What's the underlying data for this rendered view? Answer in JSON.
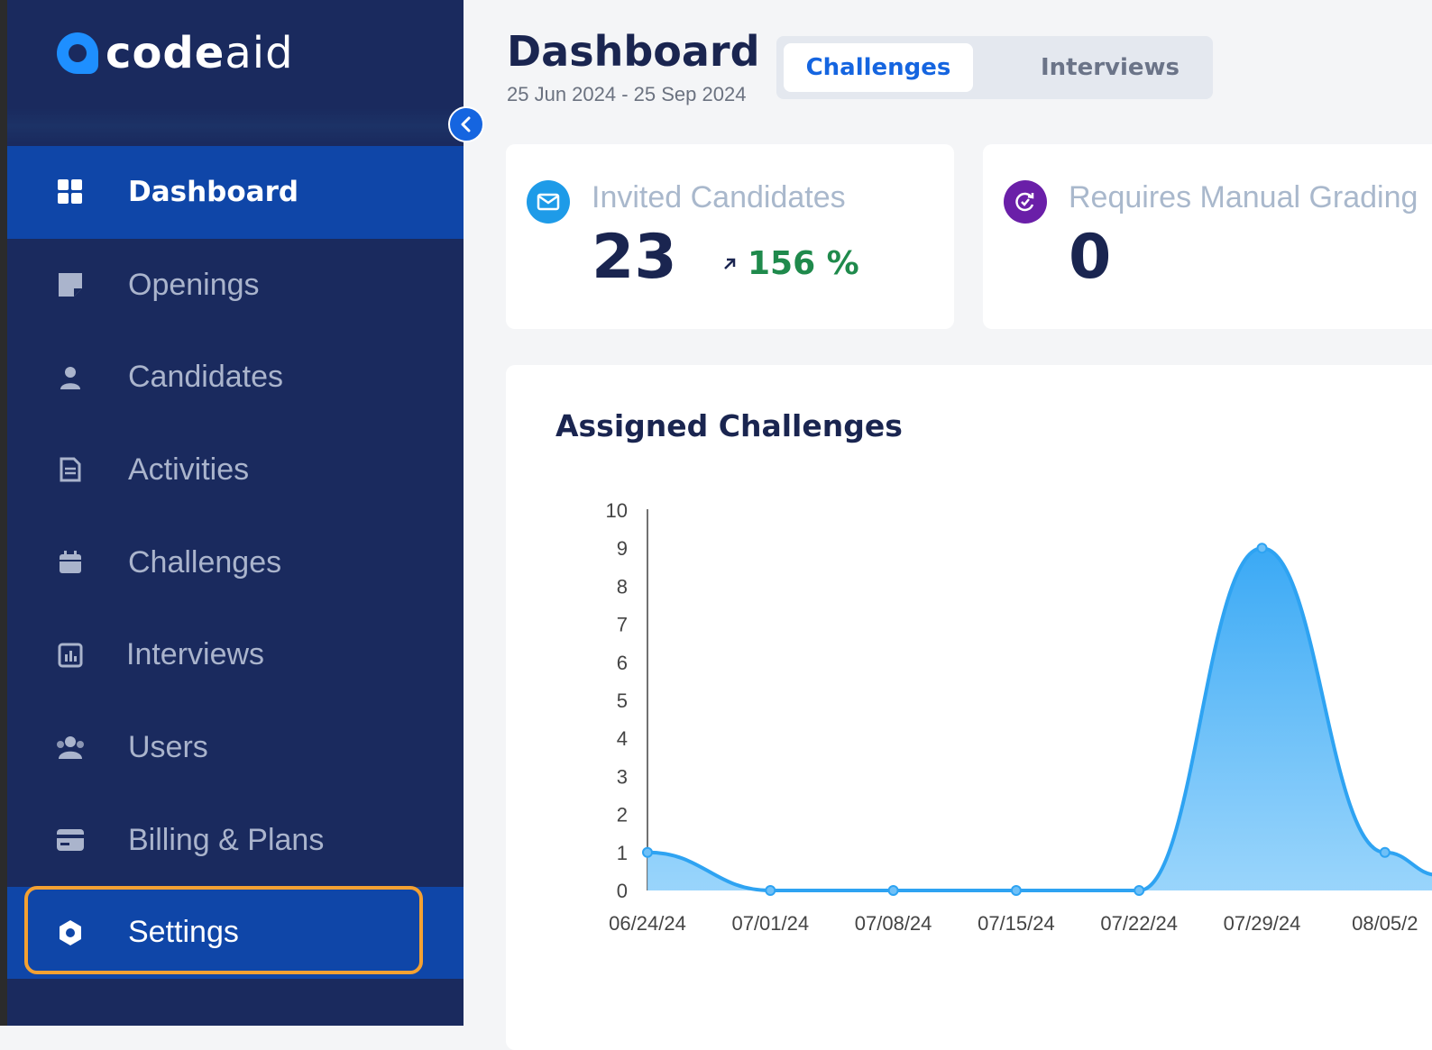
{
  "brand": {
    "name_bold": "code",
    "name_light": "aid"
  },
  "sidebar": {
    "items": [
      {
        "label": "Dashboard",
        "icon": "dashboard-grid-icon",
        "active": true
      },
      {
        "label": "Openings",
        "icon": "sticky-note-icon"
      },
      {
        "label": "Candidates",
        "icon": "person-icon"
      },
      {
        "label": "Activities",
        "icon": "document-icon"
      },
      {
        "label": "Challenges",
        "icon": "calendar-icon"
      },
      {
        "label": "Interviews",
        "icon": "bar-chart-icon"
      },
      {
        "label": "Users",
        "icon": "users-icon"
      },
      {
        "label": "Billing & Plans",
        "icon": "credit-card-icon"
      },
      {
        "label": "Settings",
        "icon": "gear-icon",
        "highlighted": true
      }
    ]
  },
  "header": {
    "title": "Dashboard",
    "date_range": "25 Jun 2024 - 25 Sep 2024",
    "tabs": [
      {
        "label": "Challenges",
        "selected": true
      },
      {
        "label": "Interviews",
        "selected": false
      }
    ]
  },
  "stats": {
    "invited": {
      "label": "Invited Candidates",
      "value": "23",
      "change": "156 %",
      "icon": "mail-icon"
    },
    "manual_grading": {
      "label": "Requires Manual Grading",
      "value": "0",
      "icon": "refresh-check-icon"
    }
  },
  "colors": {
    "sidebar_bg": "#1a2a5e",
    "active_item": "#0f46a8",
    "accent": "#1565e0",
    "highlight": "#f4a132",
    "positive": "#1f8a4c",
    "chart_line": "#2ea3f2"
  },
  "chart_data": {
    "type": "area",
    "title": "Assigned Challenges",
    "x": [
      "06/24/24",
      "07/01/24",
      "07/08/24",
      "07/15/24",
      "07/22/24",
      "07/29/24",
      "08/05/2"
    ],
    "values": [
      1,
      0,
      0,
      0,
      0,
      9,
      1
    ],
    "ylim": [
      0,
      10
    ],
    "yticks": [
      "0",
      "1",
      "2",
      "3",
      "4",
      "5",
      "6",
      "7",
      "8",
      "9",
      "10"
    ],
    "xlabel": "",
    "ylabel": "",
    "grid": false
  }
}
